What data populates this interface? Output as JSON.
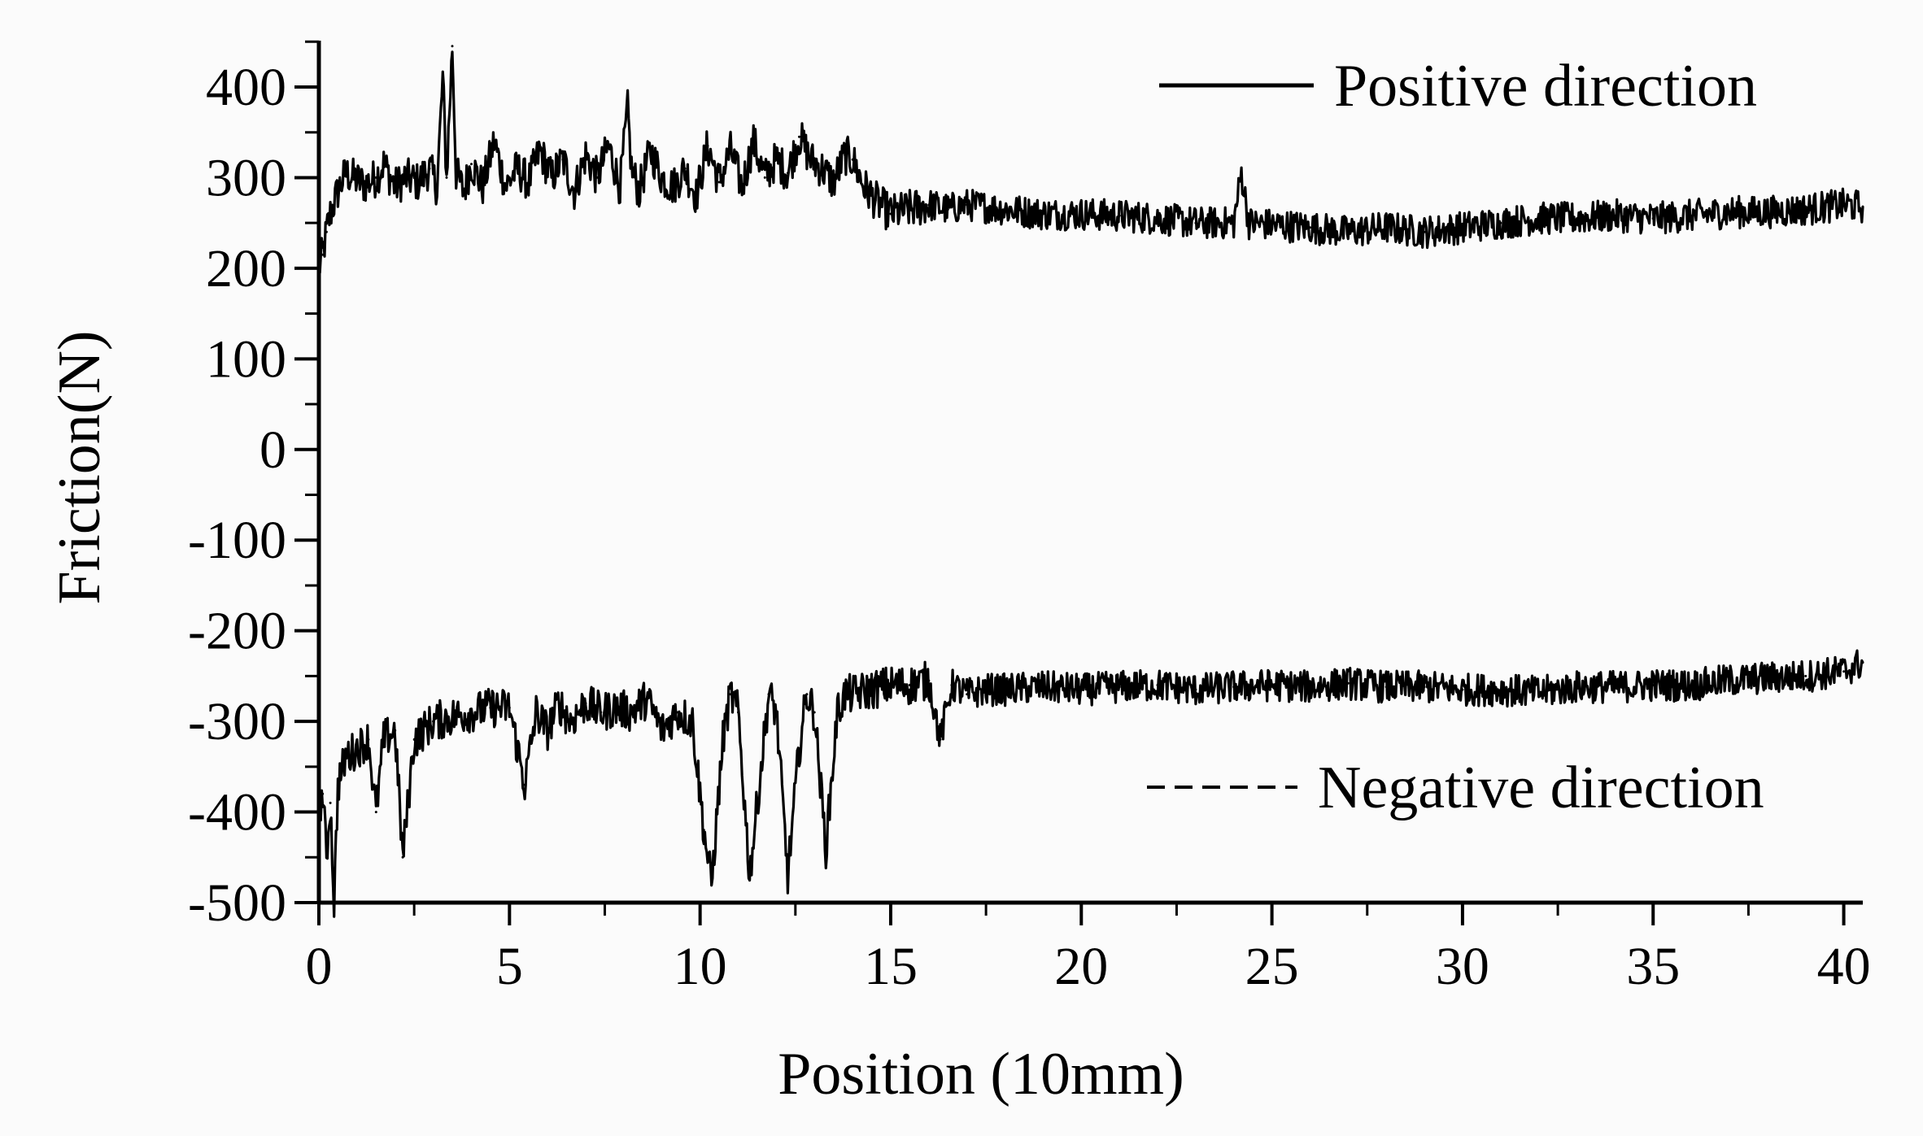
{
  "chart_data": {
    "type": "line",
    "title": "",
    "xlabel": "Position (10mm)",
    "ylabel": "Friction(N)",
    "xlim": [
      0,
      40.5
    ],
    "ylim": [
      -500,
      450
    ],
    "x_ticks": [
      0,
      5,
      10,
      15,
      20,
      25,
      30,
      35,
      40
    ],
    "x_tick_labels": [
      "0",
      "5",
      "10",
      "15",
      "20",
      "25",
      "30",
      "35",
      "40"
    ],
    "x_minor_step": 2.5,
    "y_ticks": [
      -500,
      -400,
      -300,
      -200,
      -100,
      0,
      100,
      200,
      300,
      400
    ],
    "y_tick_labels": [
      "-500",
      "-400",
      "-300",
      "-200",
      "-100",
      "0",
      "100",
      "200",
      "300",
      "400"
    ],
    "y_minor_step": 50,
    "grid": false,
    "legend_placement": "top-right and bottom-right (inline)",
    "colors": {
      "line": "#000000",
      "axis": "#000000",
      "background": "#fbfbfb"
    },
    "series": [
      {
        "name": "Positive direction",
        "style": "solid",
        "x": [
          0,
          0.1,
          0.2,
          0.3,
          0.5,
          0.7,
          0.9,
          1.2,
          1.5,
          1.7,
          2.0,
          2.3,
          2.6,
          2.9,
          3.1,
          3.25,
          3.35,
          3.5,
          3.6,
          3.8,
          4.0,
          4.3,
          4.6,
          4.9,
          5.2,
          5.5,
          5.8,
          6.1,
          6.4,
          6.7,
          7.0,
          7.3,
          7.6,
          7.9,
          8.1,
          8.2,
          8.4,
          8.7,
          9.0,
          9.3,
          9.6,
          9.9,
          10.2,
          10.5,
          10.8,
          11.1,
          11.4,
          11.7,
          12.0,
          12.3,
          12.6,
          12.9,
          13.2,
          13.5,
          13.8,
          14.0,
          14.3,
          14.6,
          15.0,
          15.5,
          16.0,
          16.5,
          17.0,
          18.0,
          19.0,
          20.0,
          21.0,
          22.0,
          23.0,
          24.0,
          24.2,
          24.4,
          25.0,
          26.0,
          27.0,
          28.0,
          29.0,
          30.0,
          31.0,
          32.0,
          33.0,
          34.0,
          35.0,
          36.0,
          37.0,
          38.0,
          39.0,
          40.0,
          40.5
        ],
        "y": [
          200,
          215,
          240,
          260,
          285,
          305,
          300,
          292,
          300,
          315,
          290,
          300,
          295,
          310,
          290,
          410,
          300,
          445,
          305,
          285,
          315,
          290,
          340,
          290,
          310,
          295,
          330,
          300,
          320,
          285,
          325,
          300,
          335,
          290,
          375,
          310,
          285,
          330,
          300,
          290,
          310,
          280,
          335,
          295,
          330,
          290,
          340,
          300,
          320,
          305,
          345,
          320,
          310,
          295,
          325,
          320,
          290,
          275,
          260,
          265,
          270,
          265,
          270,
          265,
          260,
          260,
          258,
          255,
          250,
          250,
          305,
          250,
          248,
          245,
          240,
          245,
          240,
          245,
          250,
          255,
          255,
          258,
          255,
          258,
          262,
          262,
          265,
          270,
          268
        ]
      },
      {
        "name": "Negative direction",
        "style": "dashed",
        "x": [
          0,
          0.1,
          0.2,
          0.3,
          0.4,
          0.5,
          0.7,
          1.0,
          1.3,
          1.5,
          1.7,
          2.0,
          2.2,
          2.5,
          3.0,
          3.5,
          4.0,
          4.5,
          5.0,
          5.4,
          5.7,
          6.0,
          6.3,
          6.6,
          7.0,
          7.4,
          7.8,
          8.2,
          8.6,
          9.0,
          9.4,
          9.8,
          10.1,
          10.3,
          10.6,
          10.8,
          11.0,
          11.3,
          11.6,
          11.8,
          12.0,
          12.3,
          12.6,
          12.8,
          13.0,
          13.3,
          13.6,
          13.8,
          14.0,
          14.5,
          15.0,
          15.5,
          16.0,
          16.3,
          16.6,
          17.0,
          17.5,
          18.0,
          19.0,
          20.0,
          21.0,
          22.0,
          23.0,
          24.0,
          25.0,
          26.0,
          27.0,
          28.0,
          29.0,
          30.0,
          31.0,
          32.0,
          33.0,
          34.0,
          35.0,
          36.0,
          37.0,
          38.0,
          39.0,
          40.0,
          40.5
        ],
        "y": [
          -400,
          -380,
          -450,
          -390,
          -500,
          -370,
          -340,
          -330,
          -320,
          -400,
          -320,
          -310,
          -450,
          -320,
          -300,
          -295,
          -290,
          -285,
          -285,
          -370,
          -290,
          -310,
          -280,
          -300,
          -280,
          -290,
          -285,
          -290,
          -275,
          -310,
          -290,
          -300,
          -420,
          -480,
          -320,
          -270,
          -290,
          -470,
          -350,
          -270,
          -290,
          -470,
          -330,
          -270,
          -290,
          -440,
          -290,
          -270,
          -270,
          -265,
          -260,
          -260,
          -255,
          -320,
          -260,
          -270,
          -265,
          -265,
          -262,
          -265,
          -262,
          -260,
          -265,
          -262,
          -260,
          -262,
          -258,
          -262,
          -262,
          -265,
          -265,
          -268,
          -262,
          -262,
          -260,
          -260,
          -255,
          -252,
          -250,
          -245,
          -235
        ]
      }
    ],
    "legend": {
      "positive_label": "Positive direction",
      "negative_label": "Negative direction"
    }
  }
}
